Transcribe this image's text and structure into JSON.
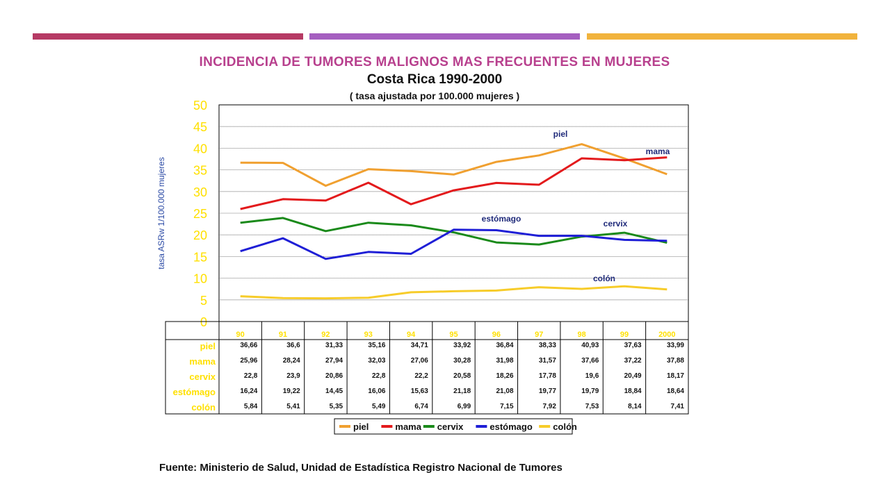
{
  "slide": {
    "title": "INCIDENCIA DE TUMORES MALIGNOS MAS FRECUENTES EN MUJERES",
    "subtitle": "Costa Rica 1990-2000",
    "unit_note": "( tasa ajustada por 100.000  mujeres )",
    "source": "Fuente: Ministerio de Salud, Unidad de Estadística  Registro Nacional de Tumores",
    "accent_colors": [
      "#b63a64",
      "#a55fc0",
      "#f1b33c"
    ]
  },
  "chart_data": {
    "type": "line",
    "ylabel": "tasa ASRw 1/100.000 mujeres",
    "ylim": [
      0,
      50
    ],
    "yticks": [
      "0",
      "5",
      "10",
      "15",
      "20",
      "25",
      "30",
      "35",
      "40",
      "45",
      "50"
    ],
    "categories": [
      "90",
      "91",
      "92",
      "93",
      "94",
      "95",
      "96",
      "97",
      "98",
      "99",
      "2000"
    ],
    "grid": true,
    "legend_position": "bottom",
    "series": [
      {
        "name": "piel",
        "color": "#f0a030",
        "label": "piel",
        "values": [
          36.66,
          36.6,
          31.33,
          35.16,
          34.71,
          33.92,
          36.84,
          38.33,
          40.93,
          37.63,
          33.99
        ],
        "table": [
          "36,66",
          "36,6",
          "31,33",
          "35,16",
          "34,71",
          "33,92",
          "36,84",
          "38,33",
          "40,93",
          "37,63",
          "33,99"
        ]
      },
      {
        "name": "mama",
        "color": "#e31a1c",
        "label": "mama",
        "values": [
          25.96,
          28.24,
          27.94,
          32.03,
          27.06,
          30.28,
          31.98,
          31.57,
          37.66,
          37.22,
          37.88
        ],
        "table": [
          "25,96",
          "28,24",
          "27,94",
          "32,03",
          "27,06",
          "30,28",
          "31,98",
          "31,57",
          "37,66",
          "37,22",
          "37,88"
        ]
      },
      {
        "name": "cervix",
        "color": "#1a8a1a",
        "label": "cervix",
        "values": [
          22.8,
          23.9,
          20.86,
          22.8,
          22.2,
          20.58,
          18.26,
          17.78,
          19.6,
          20.49,
          18.17
        ],
        "table": [
          "22,8",
          "23,9",
          "20,86",
          "22,8",
          "22,2",
          "20,58",
          "18,26",
          "17,78",
          "19,6",
          "20,49",
          "18,17"
        ]
      },
      {
        "name": "estómago",
        "color": "#1f1fd6",
        "label": "estómago",
        "values": [
          16.24,
          19.22,
          14.45,
          16.06,
          15.63,
          21.18,
          21.08,
          19.77,
          19.79,
          18.84,
          18.64
        ],
        "table": [
          "16,24",
          "19,22",
          "14,45",
          "16,06",
          "15,63",
          "21,18",
          "21,08",
          "19,77",
          "19,79",
          "18,84",
          "18,64"
        ]
      },
      {
        "name": "colón",
        "color": "#f7cc2a",
        "label": "colón",
        "values": [
          5.84,
          5.41,
          5.35,
          5.49,
          6.74,
          6.99,
          7.15,
          7.92,
          7.53,
          8.14,
          7.41
        ],
        "table": [
          "5,84",
          "5,41",
          "5,35",
          "5,49",
          "6,74",
          "6,99",
          "7,15",
          "7,92",
          "7,53",
          "8,14",
          "7,41"
        ]
      }
    ]
  }
}
